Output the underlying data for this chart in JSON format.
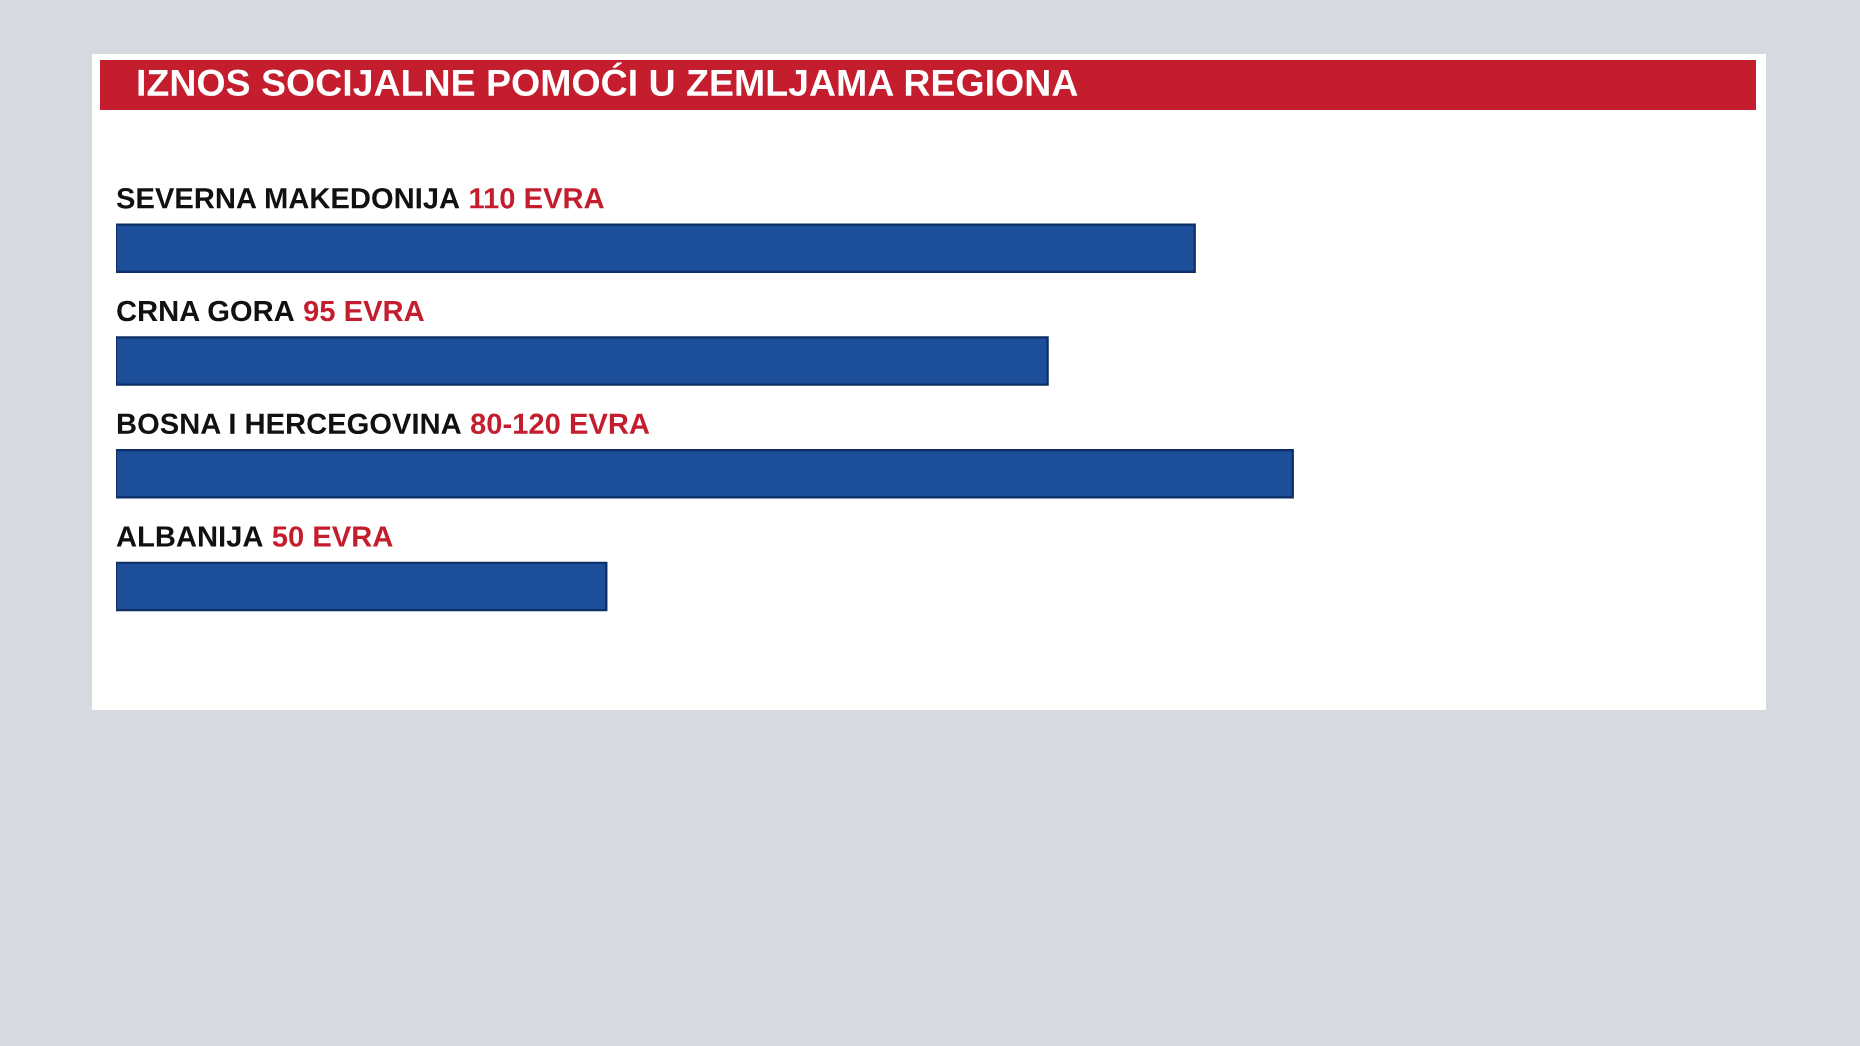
{
  "chart_data": {
    "type": "bar",
    "orientation": "horizontal",
    "title": "IZNOS SOCIJALNE POMOĆI U ZEMLJAMA REGIONA",
    "categories": [
      "SEVERNA MAKEDONIJA",
      "CRNA GORA",
      "BOSNA I HERCEGOVINA",
      "ALBANIJA"
    ],
    "values": [
      110,
      95,
      120,
      50
    ],
    "value_labels": [
      "110 EVRA",
      "95 EVRA",
      "80-120 EVRA",
      "50 EVRA"
    ],
    "color": "#1d4e9a",
    "tick_labels": "y"
  }
}
